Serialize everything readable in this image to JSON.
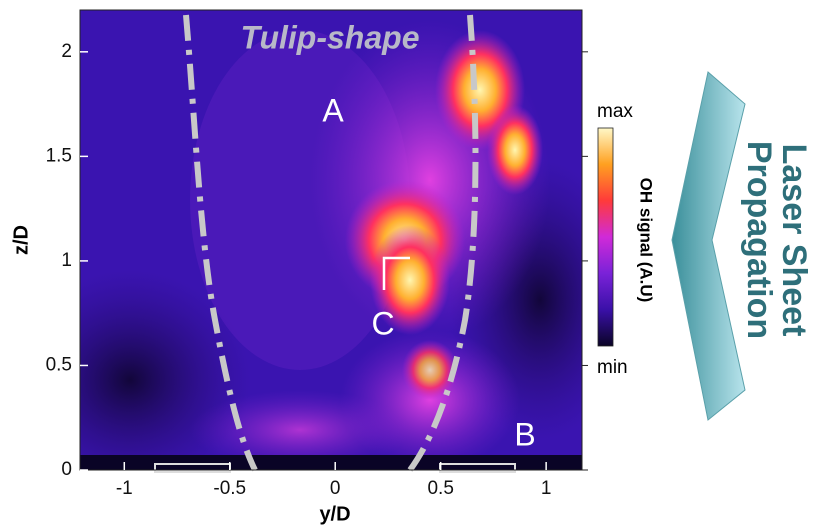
{
  "chart_data": {
    "type": "image",
    "xlabel": "y/D",
    "ylabel": "z/D",
    "xlim": [
      -1.21,
      1.17
    ],
    "ylim": [
      0,
      2.2
    ],
    "xticks": [
      -1,
      -0.5,
      0,
      0.5,
      1
    ],
    "yticks": [
      0,
      0.5,
      1,
      1.5,
      2
    ],
    "annotations": [
      "Tulip-shape",
      "A",
      "B",
      "C"
    ],
    "colorbar": {
      "title": "OH signal (A.U)",
      "max_label": "max",
      "min_label": "min",
      "colormap": [
        "#0a0426",
        "#3a10a8",
        "#7a22d8",
        "#d02ad8",
        "#ff3a3a",
        "#ffa020",
        "#fff8c8"
      ]
    },
    "side_label": [
      "Laser Sheet",
      "Propagation"
    ]
  }
}
